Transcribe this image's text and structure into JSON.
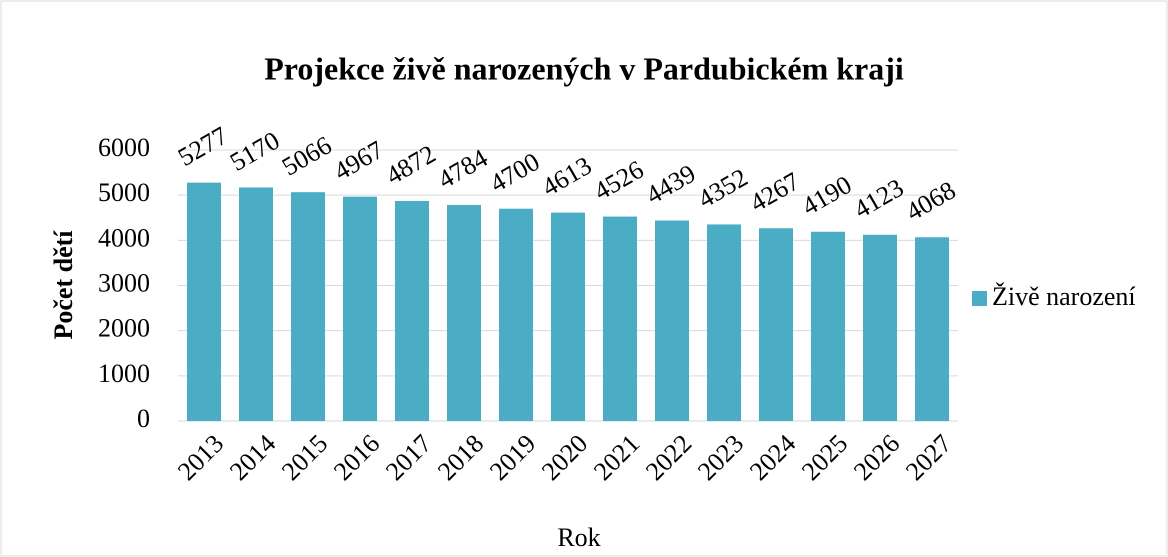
{
  "chart_data": {
    "type": "bar",
    "title": "Projekce živě narozených v Pardubickém kraji",
    "x_label": "Rok",
    "y_label": "Počet dětí",
    "categories": [
      "2013",
      "2014",
      "2015",
      "2016",
      "2017",
      "2018",
      "2019",
      "2020",
      "2021",
      "2022",
      "2023",
      "2024",
      "2025",
      "2026",
      "2027"
    ],
    "series": [
      {
        "name": "Živě narození",
        "color": "#4bacc6",
        "values": [
          5277,
          5170,
          5066,
          4967,
          4872,
          4784,
          4700,
          4613,
          4526,
          4439,
          4352,
          4267,
          4190,
          4123,
          4068
        ]
      }
    ],
    "ylim": [
      0,
      6000
    ],
    "yticks": [
      0,
      1000,
      2000,
      3000,
      4000,
      5000,
      6000
    ],
    "grid": true,
    "legend": "right"
  }
}
